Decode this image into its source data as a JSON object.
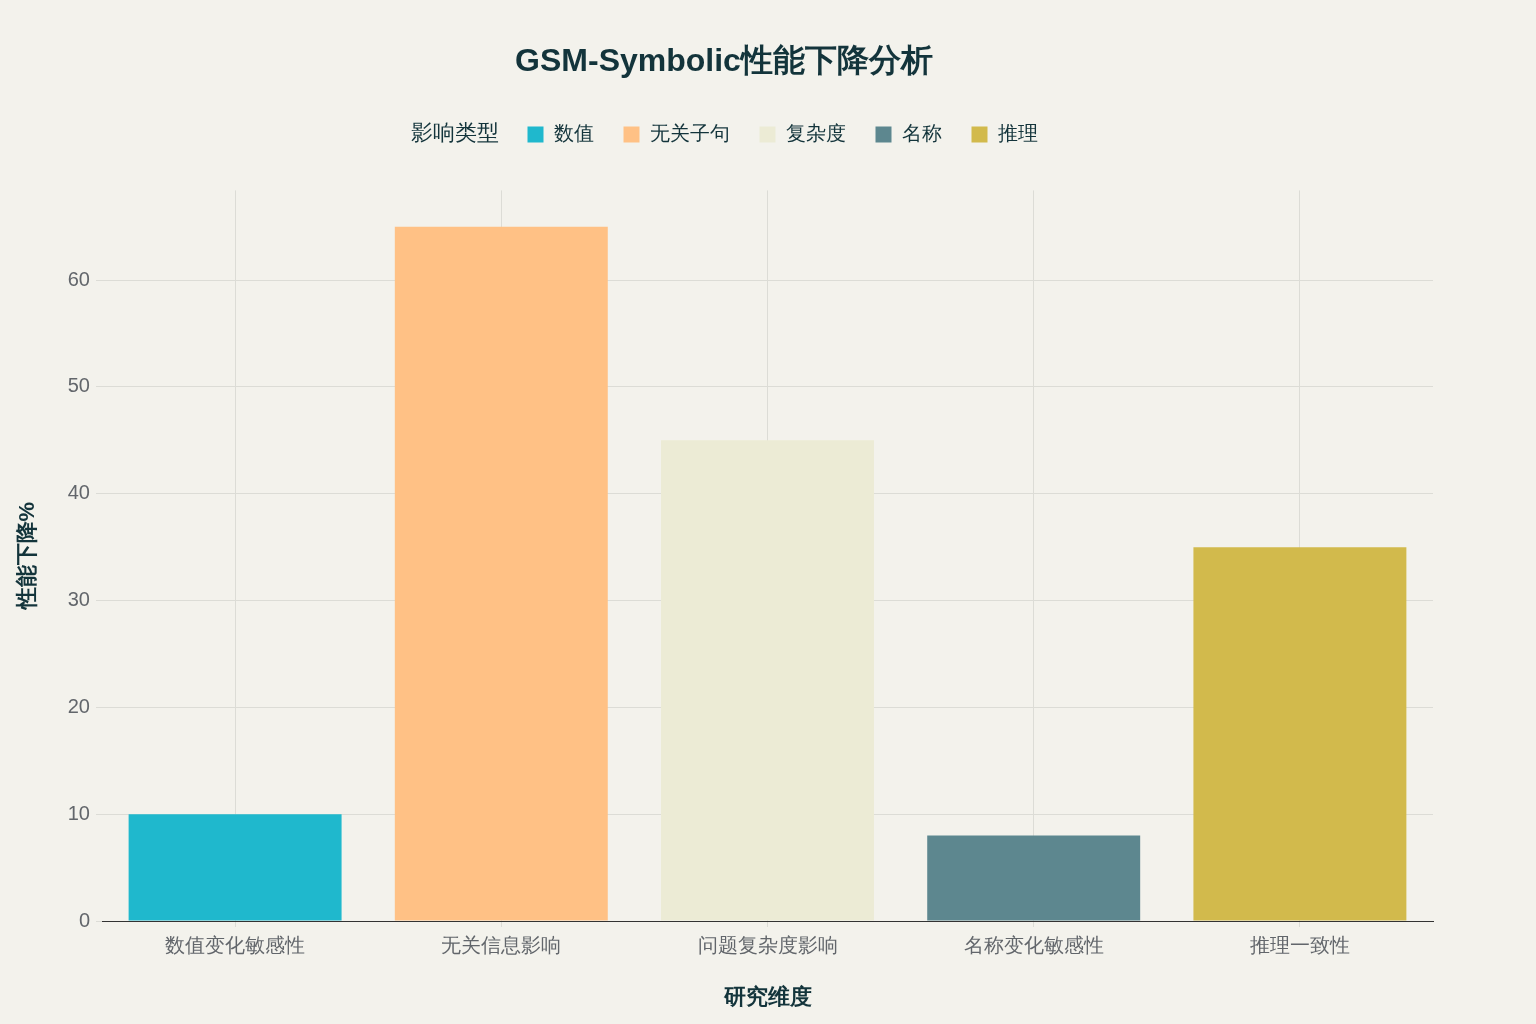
{
  "chart_data": {
    "type": "bar",
    "title": "GSM-Symbolic性能下降分析",
    "xlabel": "研究维度",
    "ylabel": "性能下降%",
    "legend_title": "影响类型",
    "categories": [
      "数值变化敏感性",
      "无关信息影响",
      "问题复杂度影响",
      "名称变化敏感性",
      "推理一致性"
    ],
    "series": [
      {
        "name": "数值",
        "color": "#1fb8cd",
        "values": [
          10,
          null,
          null,
          null,
          null
        ]
      },
      {
        "name": "无关子句",
        "color": "#ffc185",
        "values": [
          null,
          65,
          null,
          null,
          null
        ]
      },
      {
        "name": "复杂度",
        "color": "#ecebd5",
        "values": [
          null,
          null,
          45,
          null,
          null
        ]
      },
      {
        "name": "名称",
        "color": "#5d878f",
        "values": [
          null,
          null,
          null,
          8,
          null
        ]
      },
      {
        "name": "推理",
        "color": "#d2ba4c",
        "values": [
          null,
          null,
          null,
          null,
          35
        ]
      }
    ],
    "ylim": [
      0,
      68.4
    ],
    "yticks": [
      0,
      10,
      20,
      30,
      40,
      50,
      60
    ],
    "grid": true,
    "legend": "top"
  }
}
